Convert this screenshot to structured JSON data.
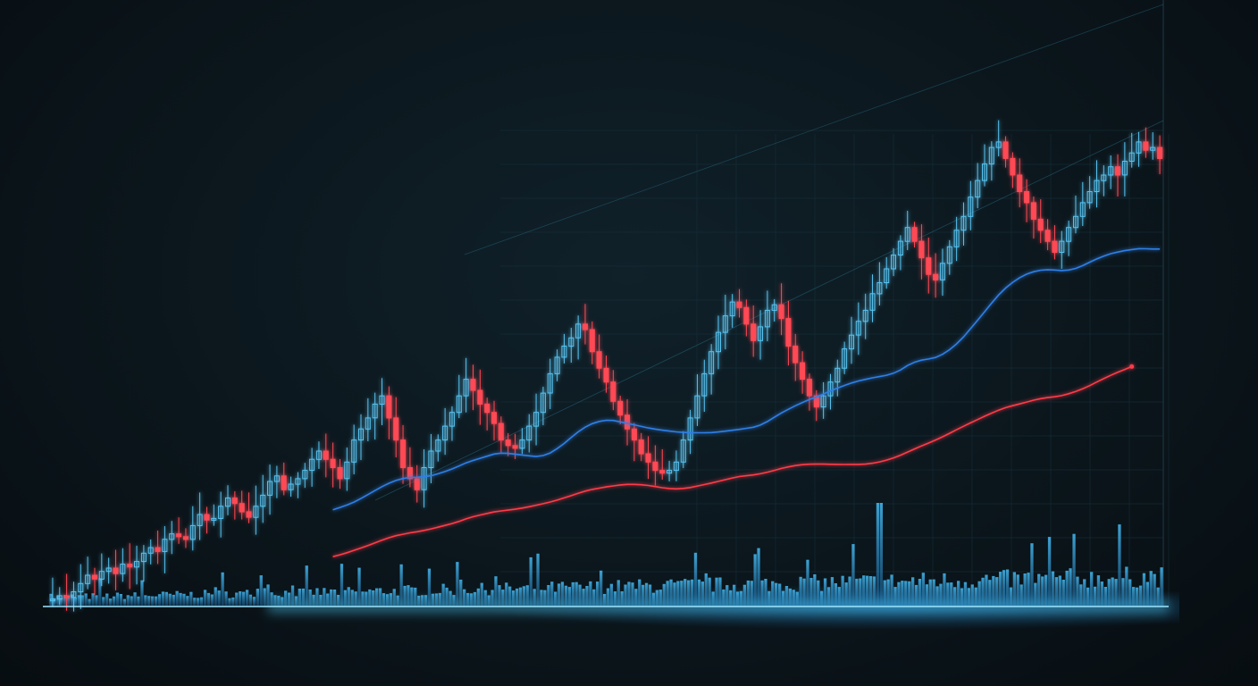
{
  "colors": {
    "background": "#0b161c",
    "up_candle": "#59c3f0",
    "down_candle": "#ff4a55",
    "volume": "#2fa9ea",
    "ma_fast": "#2f7fe6",
    "ma_slow": "#ff3b48",
    "trend_line": "#2e8aa8",
    "grid": "#18323e",
    "baseline_glow": "#4fd2ff"
  },
  "chart_data": {
    "type": "candlestick",
    "grid": true,
    "legend": "none",
    "ylim": [
      0,
      100
    ],
    "volume_ylim": [
      0,
      100
    ],
    "x_tick_labels": [
      "",
      "",
      "",
      "",
      "",
      "",
      "",
      "",
      "",
      "",
      "",
      "",
      "",
      "",
      "",
      "",
      "",
      "",
      "",
      "",
      "",
      ""
    ],
    "y_tick_labels": [
      "",
      "",
      "",
      "",
      "",
      "",
      "",
      "",
      "",
      "",
      "",
      "",
      "",
      ""
    ],
    "close": [
      1.2,
      1.8,
      1.5,
      2.5,
      4,
      5.5,
      4.8,
      6.2,
      6.8,
      5.8,
      7.5,
      7,
      8,
      9.5,
      10.5,
      9.8,
      12,
      13,
      12.5,
      12,
      14.5,
      16.5,
      15.5,
      15.8,
      18,
      19.5,
      18.5,
      17,
      16,
      18,
      20,
      22.5,
      23.5,
      21,
      22,
      23,
      24.5,
      26.5,
      28,
      26.5,
      25,
      23,
      26,
      30,
      32,
      34,
      36.5,
      38,
      34,
      30,
      25,
      23,
      21,
      25,
      28,
      30,
      32.5,
      35,
      38,
      41,
      39,
      36.5,
      35,
      33,
      30,
      29,
      28.5,
      30,
      32.5,
      35,
      38.5,
      42,
      45,
      47,
      48.5,
      51,
      50,
      46,
      43,
      40.5,
      37,
      34.5,
      32,
      30,
      27.5,
      26,
      24.5,
      24,
      24.5,
      26,
      30,
      34,
      38,
      42,
      46,
      49.5,
      52.5,
      55,
      54,
      51,
      48,
      50.5,
      53.5,
      54.5,
      52,
      47,
      44,
      41,
      38,
      36,
      38,
      40.5,
      43,
      46.5,
      49,
      51.5,
      53.5,
      56.5,
      58.5,
      61,
      63.5,
      66,
      68.5,
      66,
      63,
      60,
      59,
      62,
      65,
      68,
      70.5,
      74,
      77,
      80,
      83,
      84,
      81,
      78,
      75,
      73,
      70,
      68,
      66,
      64,
      66,
      68.5,
      70.5,
      73,
      75,
      77,
      78,
      79.5,
      78,
      80.5,
      82,
      84,
      82.5,
      83,
      81
    ]
  }
}
